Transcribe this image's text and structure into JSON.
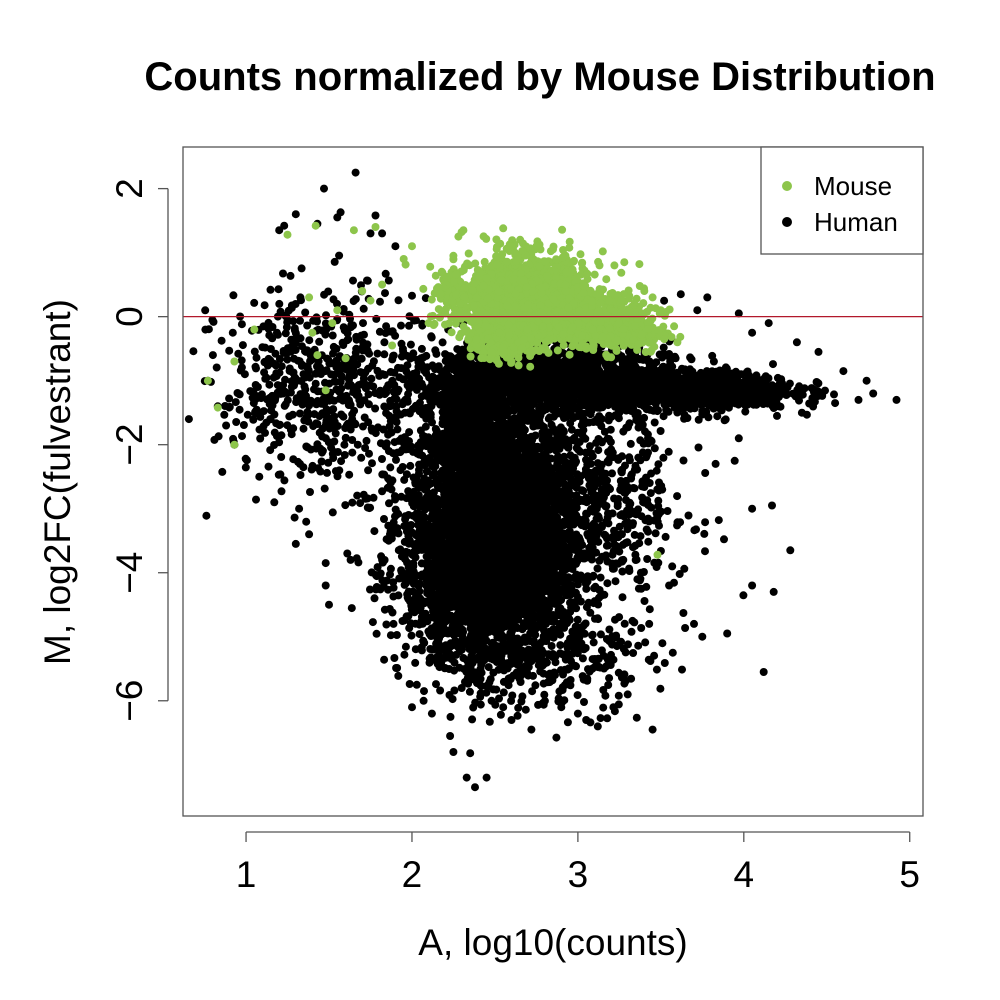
{
  "chart_data": {
    "type": "scatter",
    "title": "Counts normalized by Mouse Distribution",
    "xlabel": "A, log10(counts)",
    "ylabel": "M, log2FC(fulvestrant)",
    "xlim": [
      0.62,
      5.08
    ],
    "ylim": [
      -7.8,
      2.65
    ],
    "x_ticks": [
      1,
      2,
      3,
      4,
      5
    ],
    "y_ticks": [
      2,
      0,
      -2,
      -4,
      -6
    ],
    "reference_line": {
      "y": 0,
      "color": "#b2182b"
    },
    "grid": false,
    "legend": {
      "position": "top-right",
      "entries": [
        {
          "label": "Mouse",
          "color": "#8dc54b"
        },
        {
          "label": "Human",
          "color": "#000000"
        }
      ]
    },
    "series": [
      {
        "name": "Human",
        "color": "#000000",
        "dense_regions": [
          {
            "cx": 2.5,
            "cy": -3.2,
            "sx": 0.26,
            "sy": 0.9,
            "n": 3800
          },
          {
            "cx": 2.45,
            "cy": -4.3,
            "sx": 0.26,
            "sy": 0.6,
            "n": 1200
          },
          {
            "cx": 2.35,
            "cy": -1.6,
            "sx": 0.12,
            "sy": 0.4,
            "n": 500
          },
          {
            "cx": 2.85,
            "cy": -0.95,
            "sx": 0.35,
            "sy": 0.28,
            "n": 1600
          },
          {
            "cx": 3.7,
            "cy": -1.15,
            "sx": 0.3,
            "sy": 0.15,
            "n": 900
          },
          {
            "cx": 3.2,
            "cy": -2.8,
            "sx": 0.25,
            "sy": 0.9,
            "n": 450
          },
          {
            "cx": 1.5,
            "cy": -1.1,
            "sx": 0.33,
            "sy": 0.75,
            "n": 650
          },
          {
            "cx": 2.8,
            "cy": -5.4,
            "sx": 0.35,
            "sy": 0.4,
            "n": 250
          }
        ],
        "points": [
          [
            1.66,
            2.25
          ],
          [
            1.47,
            2.0
          ],
          [
            1.57,
            1.63
          ],
          [
            1.78,
            1.58
          ],
          [
            1.3,
            1.6
          ],
          [
            1.55,
            1.55
          ],
          [
            1.23,
            1.42
          ],
          [
            1.2,
            1.35
          ],
          [
            1.43,
            1.45
          ],
          [
            1.75,
            1.3
          ],
          [
            1.82,
            1.3
          ],
          [
            1.9,
            1.1
          ],
          [
            0.77,
            -1.0
          ],
          [
            0.83,
            -1.4
          ],
          [
            0.93,
            -2.0
          ],
          [
            0.88,
            -1.7
          ],
          [
            0.8,
            -0.6
          ],
          [
            0.92,
            -0.25
          ],
          [
            1.08,
            -2.5
          ],
          [
            1.17,
            -2.9
          ],
          [
            1.32,
            -3.0
          ],
          [
            1.3,
            -3.55
          ],
          [
            1.38,
            -3.4
          ],
          [
            1.5,
            -4.5
          ],
          [
            1.48,
            -4.2
          ],
          [
            1.48,
            -3.85
          ],
          [
            1.63,
            -3.8
          ],
          [
            1.61,
            -3.7
          ],
          [
            1.82,
            -3.8
          ],
          [
            1.86,
            -3.5
          ],
          [
            2.0,
            -6.1
          ],
          [
            2.07,
            -6.0
          ],
          [
            2.23,
            -6.55
          ],
          [
            2.25,
            -6.8
          ],
          [
            2.33,
            -7.2
          ],
          [
            2.38,
            -7.35
          ],
          [
            2.45,
            -7.2
          ],
          [
            2.6,
            -6.3
          ],
          [
            2.72,
            -6.45
          ],
          [
            3.12,
            -6.4
          ],
          [
            3.45,
            -6.45
          ],
          [
            3.3,
            -5.9
          ],
          [
            3.0,
            -6.2
          ],
          [
            3.75,
            -5.0
          ],
          [
            3.7,
            -4.8
          ],
          [
            3.9,
            -4.95
          ],
          [
            4.05,
            -4.2
          ],
          [
            4.18,
            -4.3
          ],
          [
            4.12,
            -5.55
          ],
          [
            4.28,
            -3.65
          ],
          [
            4.05,
            -3.0
          ],
          [
            4.17,
            -2.95
          ],
          [
            3.83,
            -2.3
          ],
          [
            3.97,
            -1.9
          ],
          [
            3.43,
            -4.8
          ],
          [
            3.55,
            -4.2
          ],
          [
            3.38,
            -4.0
          ],
          [
            4.92,
            -1.3
          ],
          [
            4.78,
            -1.2
          ],
          [
            4.74,
            -1.0
          ],
          [
            4.6,
            -0.85
          ],
          [
            4.45,
            -0.55
          ],
          [
            4.32,
            -0.4
          ],
          [
            4.15,
            -0.1
          ],
          [
            4.05,
            -0.25
          ],
          [
            3.97,
            0.05
          ],
          [
            3.78,
            0.3
          ],
          [
            3.72,
            0.1
          ],
          [
            3.62,
            0.35
          ],
          [
            4.35,
            -1.5
          ],
          [
            4.2,
            -1.55
          ],
          [
            4.55,
            -1.35
          ],
          [
            2.48,
            -6.0
          ],
          [
            2.55,
            -6.1
          ],
          [
            2.9,
            -6.1
          ],
          [
            3.05,
            -6.3
          ],
          [
            2.12,
            -6.2
          ],
          [
            2.3,
            -5.8
          ]
        ]
      },
      {
        "name": "Mouse",
        "color": "#8dc54b",
        "dense_regions": [
          {
            "cx": 2.7,
            "cy": 0.3,
            "sx": 0.17,
            "sy": 0.32,
            "n": 1700
          },
          {
            "cx": 2.95,
            "cy": 0.05,
            "sx": 0.22,
            "sy": 0.18,
            "n": 650
          },
          {
            "cx": 2.55,
            "cy": -0.35,
            "sx": 0.09,
            "sy": 0.16,
            "n": 300
          },
          {
            "cx": 3.25,
            "cy": -0.25,
            "sx": 0.14,
            "sy": 0.16,
            "n": 220
          },
          {
            "cx": 2.3,
            "cy": 0.35,
            "sx": 0.1,
            "sy": 0.22,
            "n": 140
          }
        ],
        "points": [
          [
            0.77,
            -1.0
          ],
          [
            0.83,
            -1.42
          ],
          [
            0.93,
            -2.0
          ],
          [
            0.93,
            -0.7
          ],
          [
            1.05,
            -0.2
          ],
          [
            1.25,
            1.28
          ],
          [
            1.42,
            1.42
          ],
          [
            1.65,
            1.35
          ],
          [
            1.78,
            1.4
          ],
          [
            1.38,
            0.3
          ],
          [
            1.4,
            -0.25
          ],
          [
            1.43,
            -0.6
          ],
          [
            1.48,
            -1.15
          ],
          [
            1.55,
            0.1
          ],
          [
            1.6,
            -0.65
          ],
          [
            1.52,
            -0.1
          ],
          [
            1.7,
            0.4
          ],
          [
            1.75,
            0.25
          ],
          [
            1.88,
            -0.45
          ],
          [
            1.82,
            0.5
          ],
          [
            1.95,
            0.9
          ],
          [
            2.0,
            1.1
          ],
          [
            2.17,
            0.35
          ],
          [
            2.18,
            0.7
          ],
          [
            2.25,
            0.95
          ],
          [
            2.31,
            1.35
          ],
          [
            2.28,
            1.25
          ],
          [
            2.45,
            0.6
          ],
          [
            2.55,
            1.38
          ],
          [
            2.6,
            1.1
          ],
          [
            2.75,
            1.1
          ],
          [
            2.85,
            1.05
          ],
          [
            3.15,
            1.02
          ],
          [
            3.13,
            0.8
          ],
          [
            3.22,
            0.8
          ],
          [
            3.28,
            0.85
          ],
          [
            3.4,
            0.4
          ],
          [
            3.45,
            0.3
          ],
          [
            3.5,
            0.1
          ],
          [
            3.58,
            -0.15
          ],
          [
            3.6,
            -0.4
          ],
          [
            3.52,
            -0.35
          ],
          [
            3.05,
            -0.5
          ],
          [
            2.6,
            -0.7
          ],
          [
            2.48,
            -0.55
          ],
          [
            2.2,
            0.05
          ],
          [
            2.1,
            -0.1
          ],
          [
            3.48,
            -3.72
          ]
        ]
      }
    ]
  }
}
